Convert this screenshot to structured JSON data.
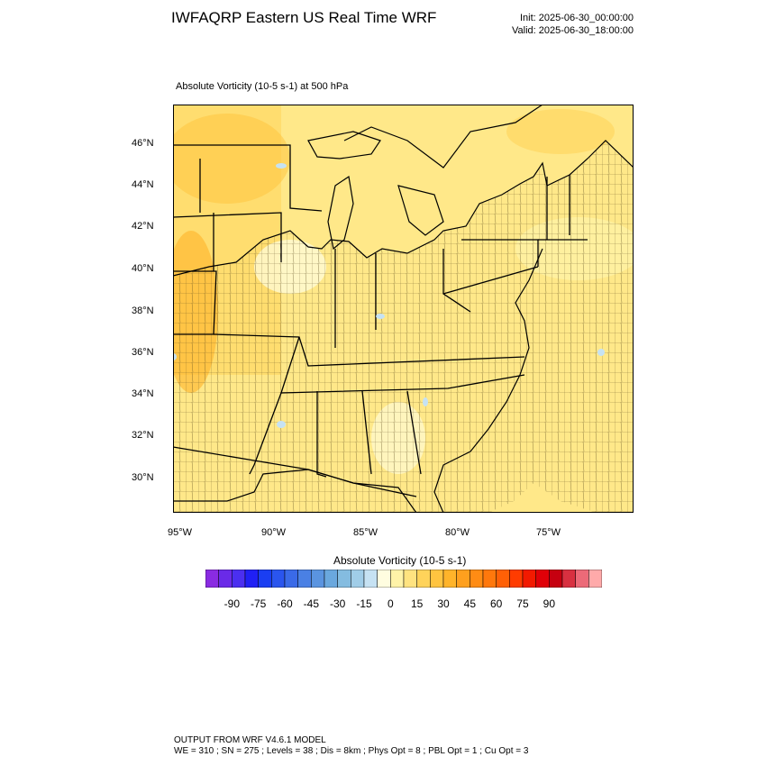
{
  "header": {
    "title": "IWFAQRP Eastern US Real Time WRF",
    "init": "Init: 2025-06-30_00:00:00",
    "valid": "Valid: 2025-06-30_18:00:00"
  },
  "plot": {
    "subtitle": "Absolute Vorticity   (10-5 s-1)     at   500 hPa",
    "lat_ticks": [
      "46°N",
      "44°N",
      "42°N",
      "40°N",
      "38°N",
      "36°N",
      "34°N",
      "32°N",
      "30°N"
    ],
    "lon_ticks": [
      "95°W",
      "90°W",
      "85°W",
      "80°W",
      "75°W"
    ]
  },
  "colorbar": {
    "title": "Absolute Vorticity  (10-5 s-1)",
    "labels": [
      "-90",
      "-75",
      "-60",
      "-45",
      "-30",
      "-15",
      "0",
      "15",
      "30",
      "45",
      "60",
      "75",
      "90"
    ],
    "colors": [
      "#8a2be2",
      "#6a2ae8",
      "#4b2ff0",
      "#2020f5",
      "#1a3ef2",
      "#2a55ee",
      "#3a6ae8",
      "#4a80e4",
      "#5a94e0",
      "#6aa8de",
      "#84bce0",
      "#a0cde8",
      "#c6e2f3",
      "#fffde0",
      "#fff3a8",
      "#ffe380",
      "#ffd35a",
      "#ffc440",
      "#ffb42a",
      "#ffa01e",
      "#ff8c14",
      "#ff780c",
      "#ff6006",
      "#ff3c00",
      "#f21a00",
      "#e00008",
      "#c60010",
      "#d83040",
      "#ec6a78",
      "#ffaaaa"
    ]
  },
  "footer": {
    "line1": "OUTPUT FROM WRF V4.6.1 MODEL",
    "line2": "WE = 310 ; SN = 275 ; Levels = 38 ; Dis = 8km ; Phys Opt = 8 ; PBL Opt = 1 ; Cu Opt = 3"
  }
}
